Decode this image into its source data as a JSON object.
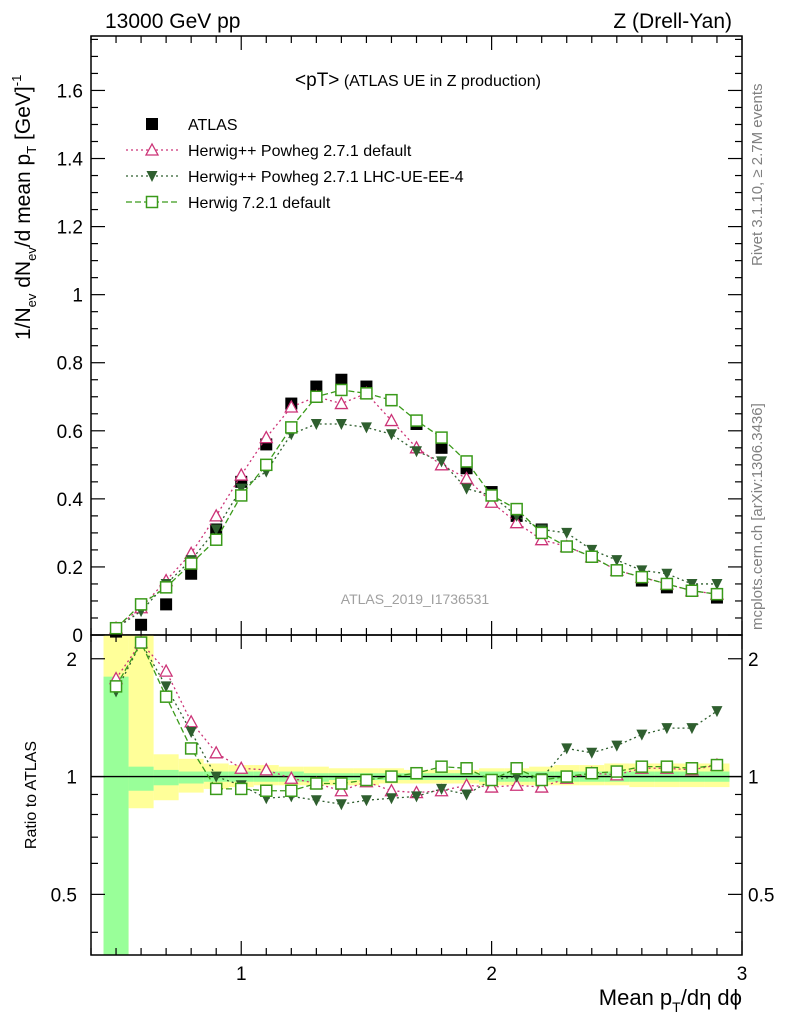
{
  "header": {
    "left": "13000 GeV pp",
    "right": "Z (Drell-Yan)"
  },
  "main_title": {
    "text": "<pT>",
    "subtitle": " (ATLAS UE in Z production)"
  },
  "side_labels": {
    "rivet": "Rivet 3.1.10, ≥ 2.7M events",
    "mcplots": "mcplots.cern.ch [arXiv:1306.3436]"
  },
  "watermark": "ATLAS_2019_I1736531",
  "axes": {
    "ylabel_main": "1/N_ev dN_ev/d mean p_T [GeV]^-1",
    "ylabel_ratio": "Ratio to ATLAS",
    "xlabel": "Mean p_T/dη dϕ"
  },
  "legend": [
    {
      "label": "ATLAS",
      "color": "#000000",
      "marker": "square-filled"
    },
    {
      "label": "Herwig++ Powheg 2.7.1 default",
      "color": "#cc3377",
      "marker": "triangle-open"
    },
    {
      "label": "Herwig++ Powheg 2.7.1 LHC-UE-EE-4",
      "color": "#2f5f2f",
      "marker": "triangle-down-filled"
    },
    {
      "label": "Herwig 7.2.1 default",
      "color": "#3a9a1a",
      "marker": "square-open"
    }
  ],
  "chart_data": [
    {
      "type": "scatter",
      "panel": "main",
      "title": "<pT> (ATLAS UE in Z production)",
      "xlabel": "Mean p_T/dη dϕ",
      "ylabel": "1/N_ev dN_ev/d mean p_T [GeV]^-1",
      "xlim": [
        0.4,
        3.0
      ],
      "ylim": [
        0,
        1.76
      ],
      "xticks": [
        1,
        2,
        3
      ],
      "yticks": [
        0,
        0.2,
        0.4,
        0.6,
        0.8,
        1,
        1.2,
        1.4,
        1.6
      ],
      "x": [
        0.5,
        0.6,
        0.7,
        0.8,
        0.9,
        1.0,
        1.1,
        1.2,
        1.3,
        1.4,
        1.5,
        1.6,
        1.7,
        1.8,
        1.9,
        2.0,
        2.1,
        2.2,
        2.3,
        2.4,
        2.5,
        2.6,
        2.7,
        2.8,
        2.9
      ],
      "series": [
        {
          "name": "ATLAS",
          "values": [
            0.01,
            0.03,
            0.09,
            0.18,
            0.31,
            0.45,
            0.56,
            0.68,
            0.73,
            0.75,
            0.73,
            0.69,
            0.62,
            0.55,
            0.49,
            0.42,
            0.35,
            0.31,
            0.26,
            0.23,
            0.19,
            0.16,
            0.14,
            0.13,
            0.11
          ]
        },
        {
          "name": "Herwig++ Powheg 2.7.1 default",
          "values": [
            0.02,
            0.08,
            0.16,
            0.24,
            0.35,
            0.47,
            0.58,
            0.67,
            0.7,
            0.68,
            0.71,
            0.63,
            0.55,
            0.5,
            0.46,
            0.39,
            0.33,
            0.28,
            0.26,
            0.23,
            0.19,
            0.17,
            0.15,
            0.13,
            0.12
          ]
        },
        {
          "name": "Herwig++ Powheg 2.7.1 LHC-UE-EE-4",
          "values": [
            0.02,
            0.07,
            0.15,
            0.22,
            0.31,
            0.43,
            0.48,
            0.59,
            0.62,
            0.62,
            0.61,
            0.59,
            0.54,
            0.51,
            0.43,
            0.41,
            0.35,
            0.31,
            0.3,
            0.25,
            0.22,
            0.19,
            0.18,
            0.15,
            0.15
          ]
        },
        {
          "name": "Herwig 7.2.1 default",
          "values": [
            0.02,
            0.09,
            0.14,
            0.21,
            0.28,
            0.41,
            0.5,
            0.61,
            0.7,
            0.72,
            0.71,
            0.69,
            0.63,
            0.58,
            0.51,
            0.41,
            0.37,
            0.3,
            0.26,
            0.23,
            0.19,
            0.17,
            0.15,
            0.13,
            0.12
          ]
        }
      ]
    },
    {
      "type": "scatter",
      "panel": "ratio",
      "ylabel": "Ratio to ATLAS",
      "xlim": [
        0.4,
        3.0
      ],
      "ylim": [
        0.35,
        2.3
      ],
      "xticks": [
        1,
        2,
        3
      ],
      "yticks": [
        0.5,
        1,
        2
      ],
      "x": [
        0.5,
        0.6,
        0.7,
        0.8,
        0.9,
        1.0,
        1.1,
        1.2,
        1.3,
        1.4,
        1.5,
        1.6,
        1.7,
        1.8,
        1.9,
        2.0,
        2.1,
        2.2,
        2.3,
        2.4,
        2.5,
        2.6,
        2.7,
        2.8,
        2.9
      ],
      "bands": {
        "yellow_low": [
          0.3,
          0.83,
          0.87,
          0.91,
          0.93,
          0.94,
          0.95,
          0.95,
          0.95,
          0.95,
          0.95,
          0.96,
          0.96,
          0.96,
          0.96,
          0.95,
          0.95,
          0.95,
          0.95,
          0.95,
          0.95,
          0.94,
          0.94,
          0.94,
          0.94
        ],
        "yellow_high": [
          2.3,
          2.3,
          1.14,
          1.11,
          1.08,
          1.07,
          1.07,
          1.06,
          1.06,
          1.05,
          1.05,
          1.05,
          1.04,
          1.04,
          1.04,
          1.05,
          1.05,
          1.06,
          1.07,
          1.07,
          1.08,
          1.08,
          1.08,
          1.08,
          1.08
        ],
        "green_low": [
          0.3,
          0.92,
          0.95,
          0.96,
          0.97,
          0.97,
          0.97,
          0.97,
          0.97,
          0.98,
          0.98,
          0.98,
          0.98,
          0.98,
          0.98,
          0.97,
          0.97,
          0.97,
          0.97,
          0.97,
          0.97,
          0.97,
          0.97,
          0.97,
          0.97
        ],
        "green_high": [
          1.8,
          1.06,
          1.04,
          1.03,
          1.03,
          1.03,
          1.03,
          1.03,
          1.02,
          1.02,
          1.02,
          1.02,
          1.02,
          1.02,
          1.02,
          1.03,
          1.03,
          1.03,
          1.03,
          1.03,
          1.03,
          1.03,
          1.03,
          1.03,
          1.03
        ]
      },
      "series": [
        {
          "name": "Herwig++ Powheg 2.7.1 default",
          "values": [
            1.78,
            2.2,
            1.86,
            1.38,
            1.15,
            1.05,
            1.04,
            0.99,
            0.96,
            0.92,
            0.97,
            0.92,
            0.91,
            0.92,
            0.95,
            0.94,
            0.95,
            0.94,
            0.99,
            1.02,
            1.01,
            1.05,
            1.05,
            1.04,
            1.07
          ]
        },
        {
          "name": "Herwig++ Powheg 2.7.1 LHC-UE-EE-4",
          "values": [
            1.65,
            2.2,
            1.7,
            1.3,
            1.0,
            0.95,
            0.88,
            0.89,
            0.87,
            0.85,
            0.87,
            0.88,
            0.89,
            0.93,
            0.9,
            0.98,
            1.0,
            0.99,
            1.18,
            1.15,
            1.2,
            1.28,
            1.33,
            1.33,
            1.47
          ]
        },
        {
          "name": "Herwig 7.2.1 default",
          "values": [
            1.7,
            2.2,
            1.6,
            1.18,
            0.93,
            0.93,
            0.92,
            0.92,
            0.96,
            0.96,
            0.98,
            1.0,
            1.02,
            1.06,
            1.05,
            0.98,
            1.05,
            0.98,
            1.0,
            1.02,
            1.03,
            1.06,
            1.06,
            1.05,
            1.07
          ]
        }
      ]
    }
  ]
}
